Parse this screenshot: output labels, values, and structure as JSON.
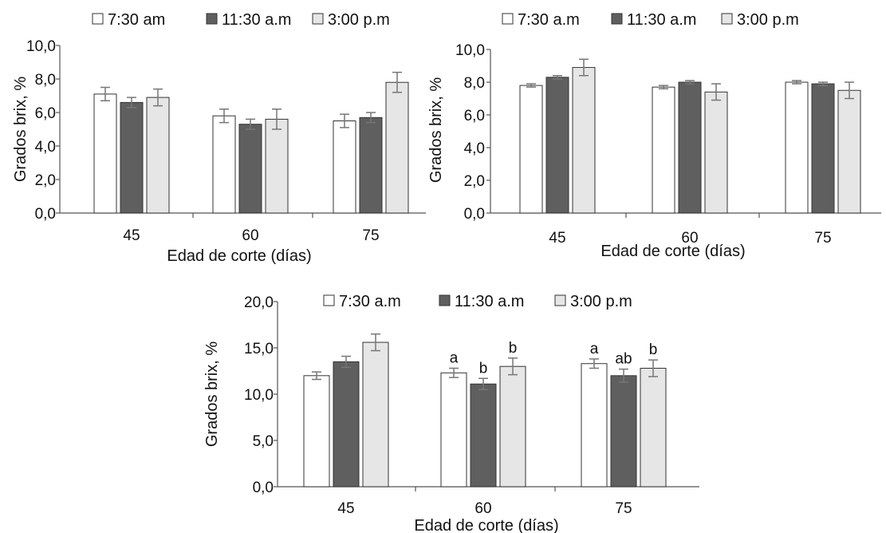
{
  "chart_data": [
    {
      "type": "bar",
      "categories": [
        "45",
        "60",
        "75"
      ],
      "series": [
        {
          "name": "7:30 am",
          "values": [
            7.1,
            5.8,
            5.5
          ],
          "errors": [
            0.4,
            0.4,
            0.4
          ],
          "color": "#ffffff"
        },
        {
          "name": "11:30 a.m",
          "values": [
            6.6,
            5.3,
            5.7
          ],
          "errors": [
            0.3,
            0.3,
            0.3
          ],
          "color": "#5f5f5f"
        },
        {
          "name": "3:00 p.m",
          "values": [
            6.9,
            5.6,
            7.8
          ],
          "errors": [
            0.5,
            0.6,
            0.6
          ],
          "color": "#e6e6e6"
        }
      ],
      "ylabel": "Grados brix, %",
      "xlabel": "Edad de corte (días)",
      "ylim": [
        0,
        10
      ],
      "yticks": [
        "0,0",
        "2,0",
        "4,0",
        "6,0",
        "8,0",
        "10,0"
      ],
      "legend": "top",
      "grid": false
    },
    {
      "type": "bar",
      "categories": [
        "45",
        "60",
        "75"
      ],
      "series": [
        {
          "name": "7:30 a.m",
          "values": [
            7.8,
            7.7,
            8.0
          ],
          "errors": [
            0.1,
            0.1,
            0.1
          ],
          "color": "#ffffff"
        },
        {
          "name": "11:30 a.m",
          "values": [
            8.3,
            8.0,
            7.9
          ],
          "errors": [
            0.1,
            0.1,
            0.1
          ],
          "color": "#5f5f5f"
        },
        {
          "name": "3:00 p.m",
          "values": [
            8.9,
            7.4,
            7.5
          ],
          "errors": [
            0.5,
            0.5,
            0.5
          ],
          "color": "#e6e6e6"
        }
      ],
      "ylabel": "Grados brix, %",
      "xlabel": "Edad de corte (días)",
      "ylim": [
        0,
        10
      ],
      "yticks": [
        "0,0",
        "2,0",
        "4,0",
        "6,0",
        "8,0",
        "10,0"
      ],
      "legend": "top",
      "grid": false
    },
    {
      "type": "bar",
      "categories": [
        "45",
        "60",
        "75"
      ],
      "series": [
        {
          "name": "7:30 a.m",
          "values": [
            12.0,
            12.3,
            13.3
          ],
          "errors": [
            0.4,
            0.5,
            0.5
          ],
          "color": "#ffffff"
        },
        {
          "name": "11:30 a.m",
          "values": [
            13.5,
            11.1,
            12.0
          ],
          "errors": [
            0.6,
            0.6,
            0.7
          ],
          "color": "#5f5f5f"
        },
        {
          "name": "3:00 p.m",
          "values": [
            15.6,
            13.0,
            12.8
          ],
          "errors": [
            0.9,
            0.9,
            0.9
          ],
          "color": "#e6e6e6"
        }
      ],
      "annotations": [
        {
          "category": 1,
          "series": 0,
          "text": "a"
        },
        {
          "category": 1,
          "series": 1,
          "text": "b"
        },
        {
          "category": 1,
          "series": 2,
          "text": "b"
        },
        {
          "category": 2,
          "series": 0,
          "text": "a"
        },
        {
          "category": 2,
          "series": 1,
          "text": "ab"
        },
        {
          "category": 2,
          "series": 2,
          "text": "b"
        }
      ],
      "ylabel": "Grados brix, %",
      "xlabel": "Edad de corte (días)",
      "ylim": [
        0,
        20
      ],
      "yticks": [
        "0,0",
        "5,0",
        "10,0",
        "15,0",
        "20,0"
      ],
      "legend": "top",
      "grid": false
    }
  ]
}
